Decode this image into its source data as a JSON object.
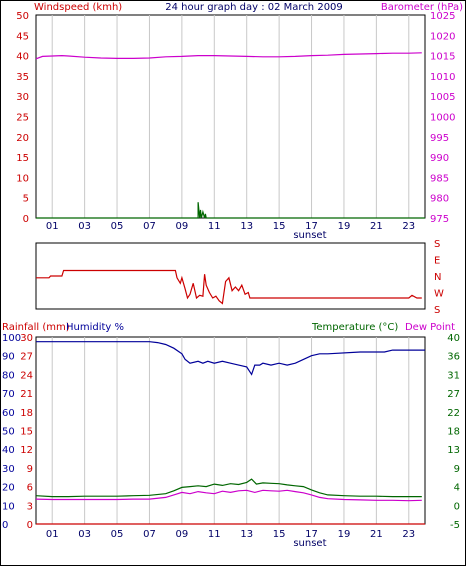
{
  "title": "24 hour graph day : 02 March 2009",
  "colors": {
    "wind": "#cc0000",
    "wind_series": "#006600",
    "baro": "#cc00cc",
    "winddir": "#cc0000",
    "rain": "#cc0000",
    "humidity": "#000099",
    "temperature": "#006600",
    "dewpoint": "#cc00cc",
    "grid": "#c8c8c8",
    "axis_text_dark": "#000066"
  },
  "x_ticks": [
    "01",
    "03",
    "05",
    "07",
    "09",
    "11",
    "13",
    "15",
    "17",
    "19",
    "21",
    "23"
  ],
  "sunset_label": "sunset",
  "chart_data": [
    {
      "type": "line",
      "name": "wind-barometer",
      "left_label": "Windspeed (kmh)",
      "right_label": "Barometer (hPa)",
      "left_ticks": [
        "50",
        "45",
        "40",
        "35",
        "30",
        "25",
        "20",
        "15",
        "10",
        "5",
        "0"
      ],
      "right_ticks": [
        "1025",
        "1020",
        "1015",
        "1010",
        "1005",
        "1000",
        "995",
        "990",
        "985",
        "980",
        "975"
      ],
      "left_ylim": [
        0,
        50
      ],
      "right_ylim": [
        975,
        1025
      ],
      "xlim": [
        0,
        24
      ],
      "grid": true,
      "series": [
        {
          "key": "barometer",
          "axis": "right",
          "x": [
            0,
            0.4,
            1,
            1.6,
            2,
            3,
            4,
            5,
            6,
            7,
            8,
            9,
            10,
            11,
            12,
            13,
            14,
            15,
            16,
            17,
            18,
            19,
            20,
            21,
            22,
            23,
            23.8
          ],
          "values": [
            1014.2,
            1014.8,
            1014.9,
            1015.0,
            1014.9,
            1014.6,
            1014.4,
            1014.3,
            1014.3,
            1014.4,
            1014.7,
            1014.8,
            1015.0,
            1015.0,
            1014.9,
            1014.8,
            1014.7,
            1014.7,
            1014.8,
            1015.0,
            1015.1,
            1015.3,
            1015.4,
            1015.5,
            1015.6,
            1015.6,
            1015.7
          ]
        },
        {
          "key": "windspeed",
          "axis": "left",
          "x": [
            0,
            10.0,
            10.0,
            10.1,
            10.15,
            10.2,
            10.3,
            10.4,
            10.45,
            10.5,
            10.6,
            24
          ],
          "values": [
            0,
            0,
            3.9,
            0,
            2.0,
            0,
            1.5,
            0,
            1.0,
            0,
            0,
            0
          ]
        }
      ]
    },
    {
      "type": "line",
      "name": "wind-direction",
      "right_ticks": [
        "S",
        "E",
        "N",
        "W",
        "S"
      ],
      "ylim": [
        0,
        360
      ],
      "xlim": [
        0,
        24
      ],
      "series": [
        {
          "key": "wind_direction",
          "x": [
            0,
            0.8,
            0.9,
            1.6,
            1.7,
            8.6,
            8.7,
            8.9,
            9.0,
            9.2,
            9.35,
            9.5,
            9.7,
            9.9,
            10.1,
            10.3,
            10.4,
            10.5,
            10.7,
            10.9,
            11.1,
            11.3,
            11.5,
            11.7,
            11.9,
            12.1,
            12.3,
            12.5,
            12.7,
            12.9,
            13.1,
            13.2,
            13.4,
            23.0,
            23.2,
            23.5,
            23.8
          ],
          "values": [
            170,
            170,
            180,
            180,
            210,
            210,
            170,
            140,
            170,
            110,
            60,
            80,
            140,
            60,
            75,
            70,
            190,
            130,
            90,
            60,
            70,
            45,
            30,
            150,
            170,
            100,
            120,
            100,
            130,
            80,
            90,
            60,
            60,
            60,
            75,
            60,
            60
          ]
        }
      ]
    },
    {
      "type": "line",
      "name": "rain-humidity-temperature",
      "left_label_rain": "Rainfall (mm)",
      "left_label_humidity": "Humidity %",
      "right_label_temp": "Temperature (°C)",
      "right_label_dew": "Dew Point",
      "rain_ticks": [
        "30",
        "27",
        "24",
        "21",
        "18",
        "15",
        "12",
        "9",
        "6",
        "3",
        "0"
      ],
      "humidity_ticks": [
        "100",
        "90",
        "80",
        "70",
        "60",
        "50",
        "40",
        "30",
        "20",
        "10",
        "0"
      ],
      "temp_ticks": [
        "40",
        "36",
        "31",
        "27",
        "22",
        "18",
        "13",
        "9",
        "4",
        "0",
        "-5"
      ],
      "humidity_ylim": [
        0,
        100
      ],
      "temp_ylim": [
        -5,
        40
      ],
      "xlim": [
        0,
        24
      ],
      "grid": true,
      "series": [
        {
          "key": "humidity",
          "axis": "humidity",
          "x": [
            0,
            7,
            7.5,
            8,
            8.5,
            9,
            9.2,
            9.5,
            10,
            10.3,
            10.6,
            11,
            11.5,
            12,
            12.5,
            13,
            13.3,
            13.5,
            13.8,
            14,
            14.5,
            15,
            15.5,
            16,
            16.5,
            17,
            17.5,
            18,
            20,
            21.5,
            22,
            24
          ],
          "values": [
            97.5,
            97.5,
            97,
            96,
            94,
            91,
            88,
            86,
            87,
            86,
            87,
            86,
            87,
            86,
            85,
            84,
            80,
            85,
            85,
            86,
            85,
            86,
            85,
            86,
            88,
            90,
            91,
            91,
            92,
            92,
            93,
            93
          ]
        },
        {
          "key": "temperature",
          "axis": "temp",
          "x": [
            0,
            1,
            2,
            3,
            4,
            5,
            6,
            7,
            8,
            8.5,
            9,
            9.5,
            10,
            10.5,
            11,
            11.5,
            12,
            12.5,
            13,
            13.3,
            13.6,
            14,
            14.5,
            15,
            15.5,
            16,
            16.5,
            17,
            17.5,
            18,
            19,
            20,
            21,
            22,
            23,
            23.8
          ],
          "values": [
            1.8,
            1.6,
            1.6,
            1.7,
            1.7,
            1.7,
            1.8,
            1.9,
            2.3,
            3.0,
            3.8,
            4.0,
            4.2,
            4.0,
            4.6,
            4.3,
            4.7,
            4.5,
            5.0,
            5.8,
            4.6,
            4.9,
            4.8,
            4.7,
            4.4,
            4.2,
            4.0,
            3.2,
            2.5,
            2.0,
            1.8,
            1.7,
            1.7,
            1.6,
            1.6,
            1.6
          ]
        },
        {
          "key": "dew_point",
          "axis": "temp",
          "x": [
            0,
            1,
            2,
            3,
            4,
            5,
            6,
            7,
            8,
            8.5,
            9,
            9.5,
            10,
            10.5,
            11,
            11.5,
            12,
            12.5,
            13,
            13.5,
            14,
            14.5,
            15,
            15.5,
            16,
            16.5,
            17,
            17.5,
            18,
            19,
            20,
            21,
            22,
            23,
            23.8
          ],
          "values": [
            1.0,
            0.9,
            0.9,
            0.9,
            0.9,
            0.9,
            1.0,
            1.0,
            1.4,
            2.0,
            2.6,
            2.3,
            2.8,
            2.5,
            2.3,
            2.9,
            2.6,
            3.0,
            3.1,
            2.6,
            3.1,
            3.0,
            2.9,
            3.1,
            2.8,
            2.5,
            2.0,
            1.4,
            1.1,
            0.9,
            0.8,
            0.7,
            0.7,
            0.6,
            0.7
          ]
        },
        {
          "key": "rainfall",
          "axis": "rain",
          "x": [
            0,
            24
          ],
          "values": [
            0,
            0
          ]
        }
      ]
    }
  ]
}
